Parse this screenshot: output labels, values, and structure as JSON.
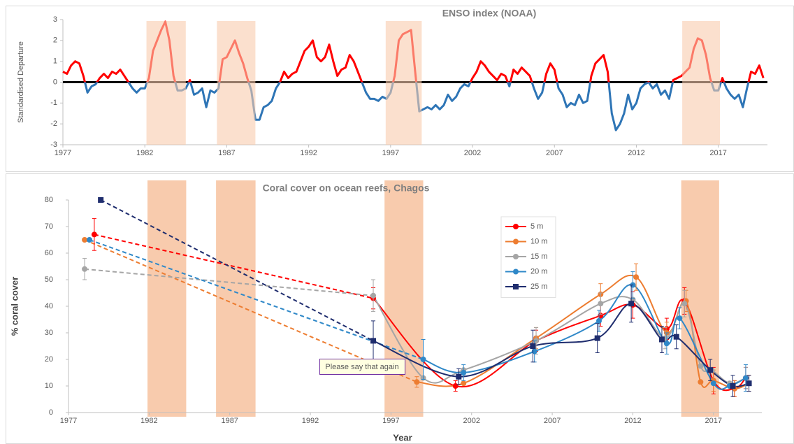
{
  "chart_data": [
    {
      "type": "line",
      "title": "ENSO index (NOAA)",
      "y_label": "Standardised Departure",
      "x": [
        1977,
        1977.25,
        1977.5,
        1977.75,
        1978,
        1978.25,
        1978.5,
        1978.75,
        1979,
        1979.25,
        1979.5,
        1979.75,
        1980,
        1980.25,
        1980.5,
        1980.75,
        1981,
        1981.25,
        1981.5,
        1981.75,
        1982,
        1982.25,
        1982.5,
        1982.75,
        1983,
        1983.25,
        1983.5,
        1983.75,
        1984,
        1984.25,
        1984.5,
        1984.75,
        1985,
        1985.25,
        1985.5,
        1985.75,
        1986,
        1986.25,
        1986.5,
        1986.75,
        1987,
        1987.25,
        1987.5,
        1987.75,
        1988,
        1988.25,
        1988.5,
        1988.75,
        1989,
        1989.25,
        1989.5,
        1989.75,
        1990,
        1990.25,
        1990.5,
        1990.75,
        1991,
        1991.25,
        1991.5,
        1991.75,
        1992,
        1992.25,
        1992.5,
        1992.75,
        1993,
        1993.25,
        1993.5,
        1993.75,
        1994,
        1994.25,
        1994.5,
        1994.75,
        1995,
        1995.25,
        1995.5,
        1995.75,
        1996,
        1996.25,
        1996.5,
        1996.75,
        1997,
        1997.25,
        1997.5,
        1997.75,
        1998,
        1998.25,
        1998.5,
        1998.75,
        1999,
        1999.25,
        1999.5,
        1999.75,
        2000,
        2000.25,
        2000.5,
        2000.75,
        2001,
        2001.25,
        2001.5,
        2001.75,
        2002,
        2002.25,
        2002.5,
        2002.75,
        2003,
        2003.25,
        2003.5,
        2003.75,
        2004,
        2004.25,
        2004.5,
        2004.75,
        2005,
        2005.25,
        2005.5,
        2005.75,
        2006,
        2006.25,
        2006.5,
        2006.75,
        2007,
        2007.25,
        2007.5,
        2007.75,
        2008,
        2008.25,
        2008.5,
        2008.75,
        2009,
        2009.25,
        2009.5,
        2009.75,
        2010,
        2010.25,
        2010.5,
        2010.75,
        2011,
        2011.25,
        2011.5,
        2011.75,
        2012,
        2012.25,
        2012.5,
        2012.75,
        2013,
        2013.25,
        2013.5,
        2013.75,
        2014,
        2014.25,
        2014.5,
        2014.75,
        2015,
        2015.25,
        2015.5,
        2015.75,
        2016,
        2016.25,
        2016.5,
        2016.75,
        2017,
        2017.25,
        2017.5,
        2017.75,
        2018,
        2018.25,
        2018.5,
        2018.75,
        2019,
        2019.25,
        2019.5,
        2019.75
      ],
      "values": [
        0.5,
        0.4,
        0.8,
        1.0,
        0.9,
        0.3,
        -0.5,
        -0.2,
        -0.1,
        0.2,
        0.4,
        0.2,
        0.5,
        0.4,
        0.6,
        0.3,
        0.0,
        -0.3,
        -0.5,
        -0.3,
        -0.3,
        0.2,
        1.5,
        2.0,
        2.5,
        2.9,
        2.0,
        0.3,
        -0.4,
        -0.4,
        -0.3,
        0.1,
        -0.6,
        -0.5,
        -0.3,
        -1.2,
        -0.4,
        -0.5,
        -0.3,
        1.1,
        1.2,
        1.6,
        2.0,
        1.4,
        0.9,
        0.2,
        -0.4,
        -1.8,
        -1.8,
        -1.2,
        -1.1,
        -0.9,
        -0.3,
        0.0,
        0.5,
        0.2,
        0.4,
        0.5,
        1.0,
        1.5,
        1.7,
        2.0,
        1.2,
        1.0,
        1.2,
        1.8,
        1.0,
        0.3,
        0.6,
        0.7,
        1.3,
        1.0,
        0.5,
        0.0,
        -0.5,
        -0.8,
        -0.8,
        -0.9,
        -0.7,
        -0.8,
        -0.5,
        0.3,
        2.0,
        2.3,
        2.4,
        2.5,
        0.5,
        -1.4,
        -1.3,
        -1.2,
        -1.3,
        -1.1,
        -1.3,
        -1.1,
        -0.6,
        -0.9,
        -0.7,
        -0.3,
        -0.1,
        -0.2,
        0.2,
        0.5,
        1.0,
        0.8,
        0.5,
        0.3,
        0.1,
        0.4,
        0.3,
        -0.2,
        0.6,
        0.4,
        0.7,
        0.5,
        0.3,
        -0.3,
        -0.8,
        -0.5,
        0.4,
        0.9,
        0.6,
        -0.3,
        -0.6,
        -1.2,
        -1.0,
        -1.1,
        -0.6,
        -1.0,
        -0.9,
        0.3,
        0.9,
        1.1,
        1.3,
        0.5,
        -1.5,
        -2.3,
        -2.0,
        -1.5,
        -0.6,
        -1.3,
        -1.0,
        -0.3,
        -0.1,
        0.0,
        -0.3,
        -0.1,
        -0.6,
        -0.4,
        -0.8,
        0.1,
        0.2,
        0.3,
        0.5,
        0.7,
        1.6,
        2.1,
        2.0,
        1.3,
        0.2,
        -0.4,
        -0.4,
        0.2,
        -0.3,
        -0.6,
        -0.8,
        -0.6,
        -1.2,
        -0.3,
        0.5,
        0.4,
        0.8,
        0.2
      ],
      "color_above": "#ff0000",
      "color_below": "#2e75b6",
      "bands": [
        [
          1982.1,
          1984.5
        ],
        [
          1986.4,
          1988.75
        ],
        [
          1996.7,
          1998.9
        ],
        [
          2014.8,
          2017.1
        ]
      ],
      "band_color": "#f8cbad",
      "xlim": [
        1977,
        2020
      ],
      "ylim": [
        -3,
        3
      ],
      "xticks": [
        1977,
        1982,
        1987,
        1992,
        1997,
        2002,
        2007,
        2012,
        2017
      ],
      "yticks": [
        -3,
        -2,
        -1,
        0,
        1,
        2,
        3
      ]
    },
    {
      "type": "line",
      "title": "Coral cover on ocean reefs, Chagos",
      "x_label": "Year",
      "y_label": "% coral cover",
      "series": [
        {
          "name": "5 m",
          "color": "#ff0000",
          "marker": "circle",
          "x": [
            1978.6,
            1995.9,
            2001.0,
            2006.0,
            2010.0,
            2012.0,
            2014.1,
            2015.2,
            2017.0,
            2018.3,
            2019.0
          ],
          "values": [
            67,
            43,
            10,
            27,
            36.5,
            40.5,
            31.5,
            42,
            12,
            9,
            13
          ],
          "errors": [
            6,
            4,
            2,
            4,
            4,
            5,
            4,
            5,
            5,
            3,
            4
          ]
        },
        {
          "name": "10 m",
          "color": "#ed7d31",
          "marker": "circle",
          "x": [
            1978.0,
            1998.6,
            2001.5,
            2006.0,
            2010.0,
            2012.2,
            2014.1,
            2015.3,
            2016.2,
            2017.0,
            2018.3,
            2019.2
          ],
          "values": [
            65,
            11.5,
            11,
            28,
            44.5,
            51,
            30,
            42,
            11.5,
            12,
            9,
            11
          ],
          "errors": [
            null,
            2,
            null,
            4,
            4,
            5,
            4,
            4,
            null,
            4,
            3,
            3
          ]
        },
        {
          "name": "15 m",
          "color": "#a5a5a5",
          "marker": "circle",
          "x": [
            1978.0,
            1995.9,
            1999.0,
            2001.5,
            2006.0,
            2010.0,
            2012.0,
            2014.0,
            2015.2,
            2016.2,
            2016.9,
            2018.0,
            2019.0
          ],
          "values": [
            54,
            44,
            13,
            16,
            27,
            41,
            42.5,
            28,
            41,
            17.5,
            16,
            11,
            13
          ],
          "errors": [
            4,
            6,
            null,
            null,
            5,
            4,
            null,
            4,
            5,
            null,
            null,
            null,
            4
          ]
        },
        {
          "name": "20 m",
          "color": "#2f88c8",
          "marker": "circle",
          "x": [
            1978.3,
            1999.0,
            2001.5,
            2005.9,
            2009.9,
            2012.0,
            2014.1,
            2014.9,
            2017.0,
            2018.0,
            2019.0
          ],
          "values": [
            65,
            20,
            15,
            23,
            34.5,
            48,
            26,
            35.5,
            11,
            10,
            13
          ],
          "errors": [
            null,
            7.5,
            3,
            4,
            4,
            5,
            4,
            4,
            null,
            null,
            5
          ]
        },
        {
          "name": "25 m",
          "color": "#1f2d6e",
          "marker": "square",
          "x": [
            1979.0,
            1995.9,
            2001.2,
            2005.8,
            2009.8,
            2011.9,
            2013.8,
            2014.7,
            2016.8,
            2018.2,
            2019.2
          ],
          "values": [
            80,
            27,
            13.5,
            25,
            28,
            41,
            27.5,
            28.5,
            16,
            10,
            11
          ],
          "errors": [
            null,
            7.5,
            3,
            6,
            5.5,
            7,
            5,
            4.5,
            4,
            4,
            3
          ]
        }
      ],
      "annotation": "Please say that again",
      "bands": [
        [
          1981.9,
          1984.3
        ],
        [
          1986.15,
          1988.6
        ],
        [
          1996.6,
          1999.0
        ],
        [
          2015.0,
          2017.35
        ]
      ],
      "band_color": "#f8cbad",
      "legend": "upper-center",
      "xlim": [
        1977,
        2020
      ],
      "ylim": [
        0,
        80
      ],
      "xticks": [
        1977,
        1982,
        1987,
        1992,
        1997,
        2002,
        2007,
        2012,
        2017
      ],
      "yticks": [
        0,
        10,
        20,
        30,
        40,
        50,
        60,
        70,
        80
      ]
    }
  ]
}
